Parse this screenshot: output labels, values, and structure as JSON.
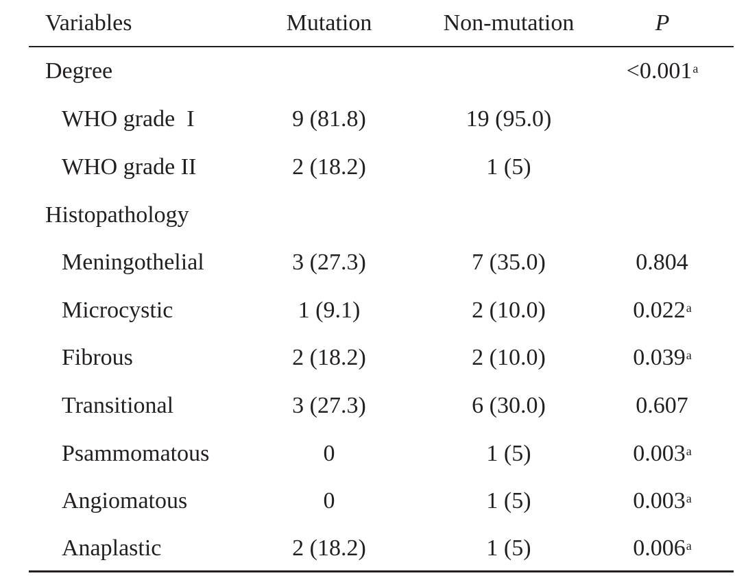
{
  "header": {
    "variables": "Variables",
    "mutation": "Mutation",
    "non_mutation": "Non-mutation",
    "p": "P"
  },
  "rows": [
    {
      "label": "Degree",
      "mutation": "",
      "non_mutation": "",
      "p": "<0.001",
      "p_note": "a",
      "indent": false
    },
    {
      "label": "WHO grade  I",
      "mutation": "9 (81.8)",
      "non_mutation": "19 (95.0)",
      "p": "",
      "p_note": "",
      "indent": true
    },
    {
      "label": "WHO grade II",
      "mutation": "2 (18.2)",
      "non_mutation": "1 (5)",
      "p": "",
      "p_note": "",
      "indent": true
    },
    {
      "label": "Histopathology",
      "mutation": "",
      "non_mutation": "",
      "p": "",
      "p_note": "",
      "indent": false
    },
    {
      "label": "Meningothelial",
      "mutation": "3 (27.3)",
      "non_mutation": "7 (35.0)",
      "p": "0.804",
      "p_note": "",
      "indent": true
    },
    {
      "label": "Microcystic",
      "mutation": "1 (9.1)",
      "non_mutation": "2 (10.0)",
      "p": "0.022",
      "p_note": "a",
      "indent": true
    },
    {
      "label": "Fibrous",
      "mutation": "2 (18.2)",
      "non_mutation": "2 (10.0)",
      "p": "0.039",
      "p_note": "a",
      "indent": true
    },
    {
      "label": "Transitional",
      "mutation": "3 (27.3)",
      "non_mutation": "6 (30.0)",
      "p": "0.607",
      "p_note": "",
      "indent": true
    },
    {
      "label": "Psammomatous",
      "mutation": "0",
      "non_mutation": "1 (5)",
      "p": "0.003",
      "p_note": "a",
      "indent": true
    },
    {
      "label": "Angiomatous",
      "mutation": "0",
      "non_mutation": "1 (5)",
      "p": "0.003",
      "p_note": "a",
      "indent": true
    },
    {
      "label": "Anaplastic",
      "mutation": "2 (18.2)",
      "non_mutation": "1 (5)",
      "p": "0.006",
      "p_note": "a",
      "indent": true
    }
  ]
}
